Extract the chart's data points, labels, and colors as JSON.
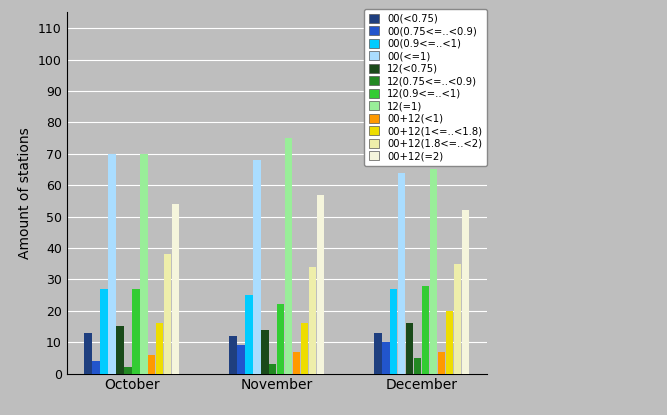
{
  "categories": [
    "October",
    "November",
    "December"
  ],
  "series": [
    {
      "label": "00(<0.75)",
      "color": "#1F3F7F",
      "values": [
        13,
        12,
        13
      ]
    },
    {
      "label": "00(0.75<=..<0.9)",
      "color": "#2255CC",
      "values": [
        4,
        9,
        10
      ]
    },
    {
      "label": "00(0.9<=..<1)",
      "color": "#00CCFF",
      "values": [
        27,
        25,
        27
      ]
    },
    {
      "label": "00(<=1)",
      "color": "#AADDFF",
      "values": [
        70,
        68,
        64
      ]
    },
    {
      "label": "12(<0.75)",
      "color": "#1A4A1A",
      "values": [
        15,
        14,
        16
      ]
    },
    {
      "label": "12(0.75<=..<0.9)",
      "color": "#228822",
      "values": [
        2,
        3,
        5
      ]
    },
    {
      "label": "12(0.9<=..<1)",
      "color": "#33CC33",
      "values": [
        27,
        22,
        28
      ]
    },
    {
      "label": "12(=1)",
      "color": "#99EE99",
      "values": [
        70,
        75,
        65
      ]
    },
    {
      "label": "00+12(<1)",
      "color": "#FF9900",
      "values": [
        6,
        7,
        7
      ]
    },
    {
      "label": "00+12(1<=..<1.8)",
      "color": "#EEDD00",
      "values": [
        16,
        16,
        20
      ]
    },
    {
      "label": "00+12(1.8<=..<2)",
      "color": "#EEEEAA",
      "values": [
        38,
        34,
        35
      ]
    },
    {
      "label": "00+12(=2)",
      "color": "#F5F5DC",
      "values": [
        54,
        57,
        52
      ]
    }
  ],
  "ylabel": "Amount of stations",
  "ylim": [
    0,
    115
  ],
  "yticks": [
    0,
    10,
    20,
    30,
    40,
    50,
    60,
    70,
    80,
    90,
    100,
    110
  ],
  "background_color": "#BEBEBE",
  "figsize": [
    6.67,
    4.15
  ],
  "dpi": 100
}
